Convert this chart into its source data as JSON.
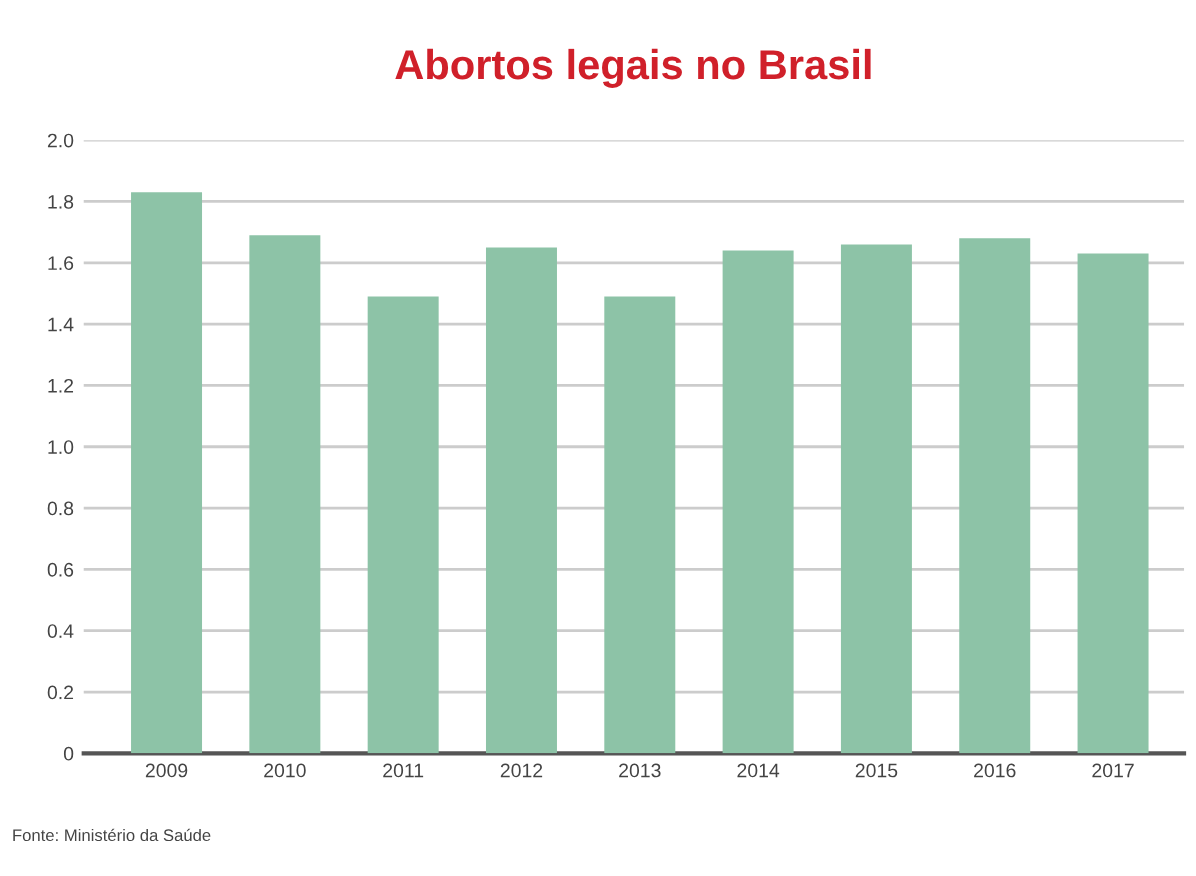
{
  "chart_data": {
    "type": "bar",
    "title": "Abortos legais no Brasil",
    "categories": [
      "2009",
      "2010",
      "2011",
      "2012",
      "2013",
      "2014",
      "2015",
      "2016",
      "2017"
    ],
    "values": [
      1.83,
      1.69,
      1.49,
      1.65,
      1.49,
      1.64,
      1.66,
      1.68,
      1.63
    ],
    "color": "#8dc3a7",
    "ylim": [
      0,
      2.0
    ],
    "yticks": [
      {
        "value": 0,
        "label": "0"
      },
      0.2,
      0.4,
      0.6,
      0.8,
      {
        "value": 1.0,
        "label": "1.0"
      },
      1.2,
      1.4,
      1.6,
      1.8,
      {
        "value": 2.0,
        "label": "2.0"
      }
    ],
    "grid": "y",
    "annotations": [
      "Fonte: Ministério da Saúde"
    ]
  }
}
